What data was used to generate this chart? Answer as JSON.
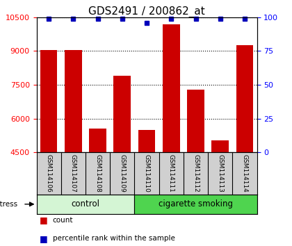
{
  "title": "GDS2491 / 200862_at",
  "samples": [
    "GSM114106",
    "GSM114107",
    "GSM114108",
    "GSM114109",
    "GSM114110",
    "GSM114111",
    "GSM114112",
    "GSM114113",
    "GSM114114"
  ],
  "counts": [
    9050,
    9050,
    5550,
    7900,
    5500,
    10200,
    7300,
    5050,
    9250
  ],
  "percentile_ranks": [
    99,
    99,
    99,
    99,
    96,
    99,
    99,
    99,
    99
  ],
  "groups": [
    "control",
    "control",
    "control",
    "control",
    "cigarette smoking",
    "cigarette smoking",
    "cigarette smoking",
    "cigarette smoking",
    "cigarette smoking"
  ],
  "group_colors": {
    "control": "#d4f5d4",
    "cigarette smoking": "#4fd44f"
  },
  "ylim_left": [
    4500,
    10500
  ],
  "yticks_left": [
    4500,
    6000,
    7500,
    9000,
    10500
  ],
  "yticks_right": [
    0,
    25,
    50,
    75,
    100
  ],
  "bar_color": "#cc0000",
  "dot_color": "#0000bb",
  "bg_color": "#d0d0d0",
  "plot_bg": "#ffffff",
  "title_fontsize": 11,
  "tick_fontsize": 8,
  "label_fontsize": 6.5
}
